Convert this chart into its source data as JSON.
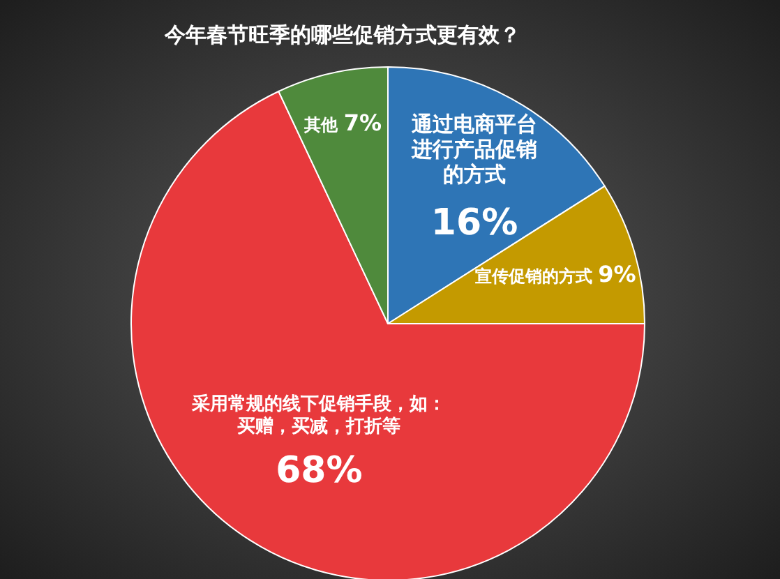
{
  "chart_data": {
    "type": "pie",
    "title": "今年春节旺季的哪些促销方式更有效？",
    "categories": [
      "通过电商平台进行产品促销的方式",
      "宣传促销的方式",
      "采用常规的线下促销手段，如：买赠，买减，打折等",
      "其他"
    ],
    "values": [
      16,
      9,
      68,
      7
    ],
    "value_labels": [
      "16%",
      "9%",
      "68%",
      "7%"
    ],
    "colors": [
      "#2e75b6",
      "#c49a00",
      "#e8393c",
      "#4f8a3c"
    ]
  }
}
